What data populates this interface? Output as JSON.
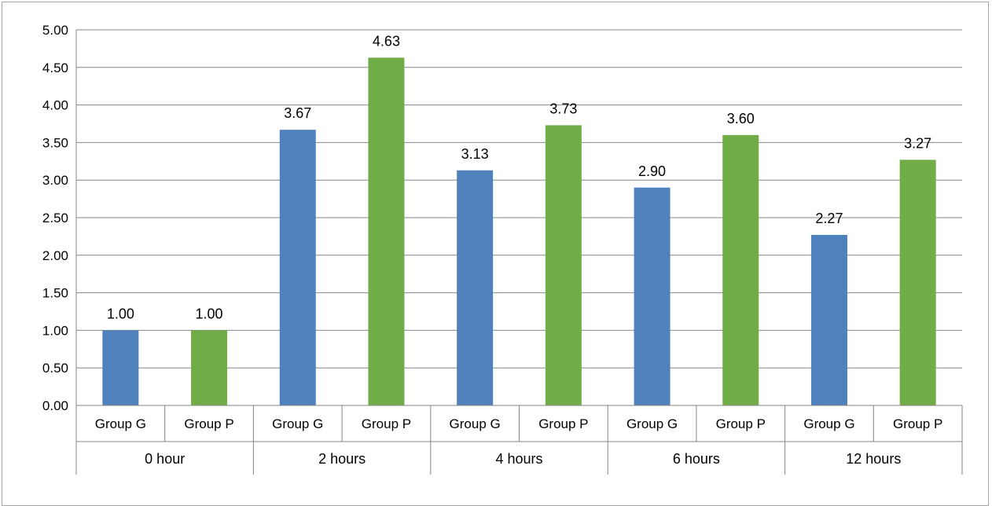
{
  "chart_data": {
    "type": "bar",
    "title": "",
    "xlabel": "",
    "ylabel": "",
    "ylim": [
      0,
      5
    ],
    "yticks": [
      "0.00",
      "0.50",
      "1.00",
      "1.50",
      "2.00",
      "2.50",
      "3.00",
      "3.50",
      "4.00",
      "4.50",
      "5.00"
    ],
    "grid": true,
    "legend": "none",
    "groups": [
      {
        "label": "0 hour",
        "bars": [
          {
            "category": "Group G",
            "value": 1.0,
            "label": "1.00",
            "color": "#4f81bd"
          },
          {
            "category": "Group P",
            "value": 1.0,
            "label": "1.00",
            "color": "#70ad47"
          }
        ]
      },
      {
        "label": "2 hours",
        "bars": [
          {
            "category": "Group G",
            "value": 3.67,
            "label": "3.67",
            "color": "#4f81bd"
          },
          {
            "category": "Group P",
            "value": 4.63,
            "label": "4.63",
            "color": "#70ad47"
          }
        ]
      },
      {
        "label": "4 hours",
        "bars": [
          {
            "category": "Group G",
            "value": 3.13,
            "label": "3.13",
            "color": "#4f81bd"
          },
          {
            "category": "Group P",
            "value": 3.73,
            "label": "3.73",
            "color": "#70ad47"
          }
        ]
      },
      {
        "label": "6 hours",
        "bars": [
          {
            "category": "Group G",
            "value": 2.9,
            "label": "2.90",
            "color": "#4f81bd"
          },
          {
            "category": "Group P",
            "value": 3.6,
            "label": "3.60",
            "color": "#70ad47"
          }
        ]
      },
      {
        "label": "12 hours",
        "bars": [
          {
            "category": "Group G",
            "value": 2.27,
            "label": "2.27",
            "color": "#4f81bd"
          },
          {
            "category": "Group P",
            "value": 3.27,
            "label": "3.27",
            "color": "#70ad47"
          }
        ]
      }
    ]
  }
}
